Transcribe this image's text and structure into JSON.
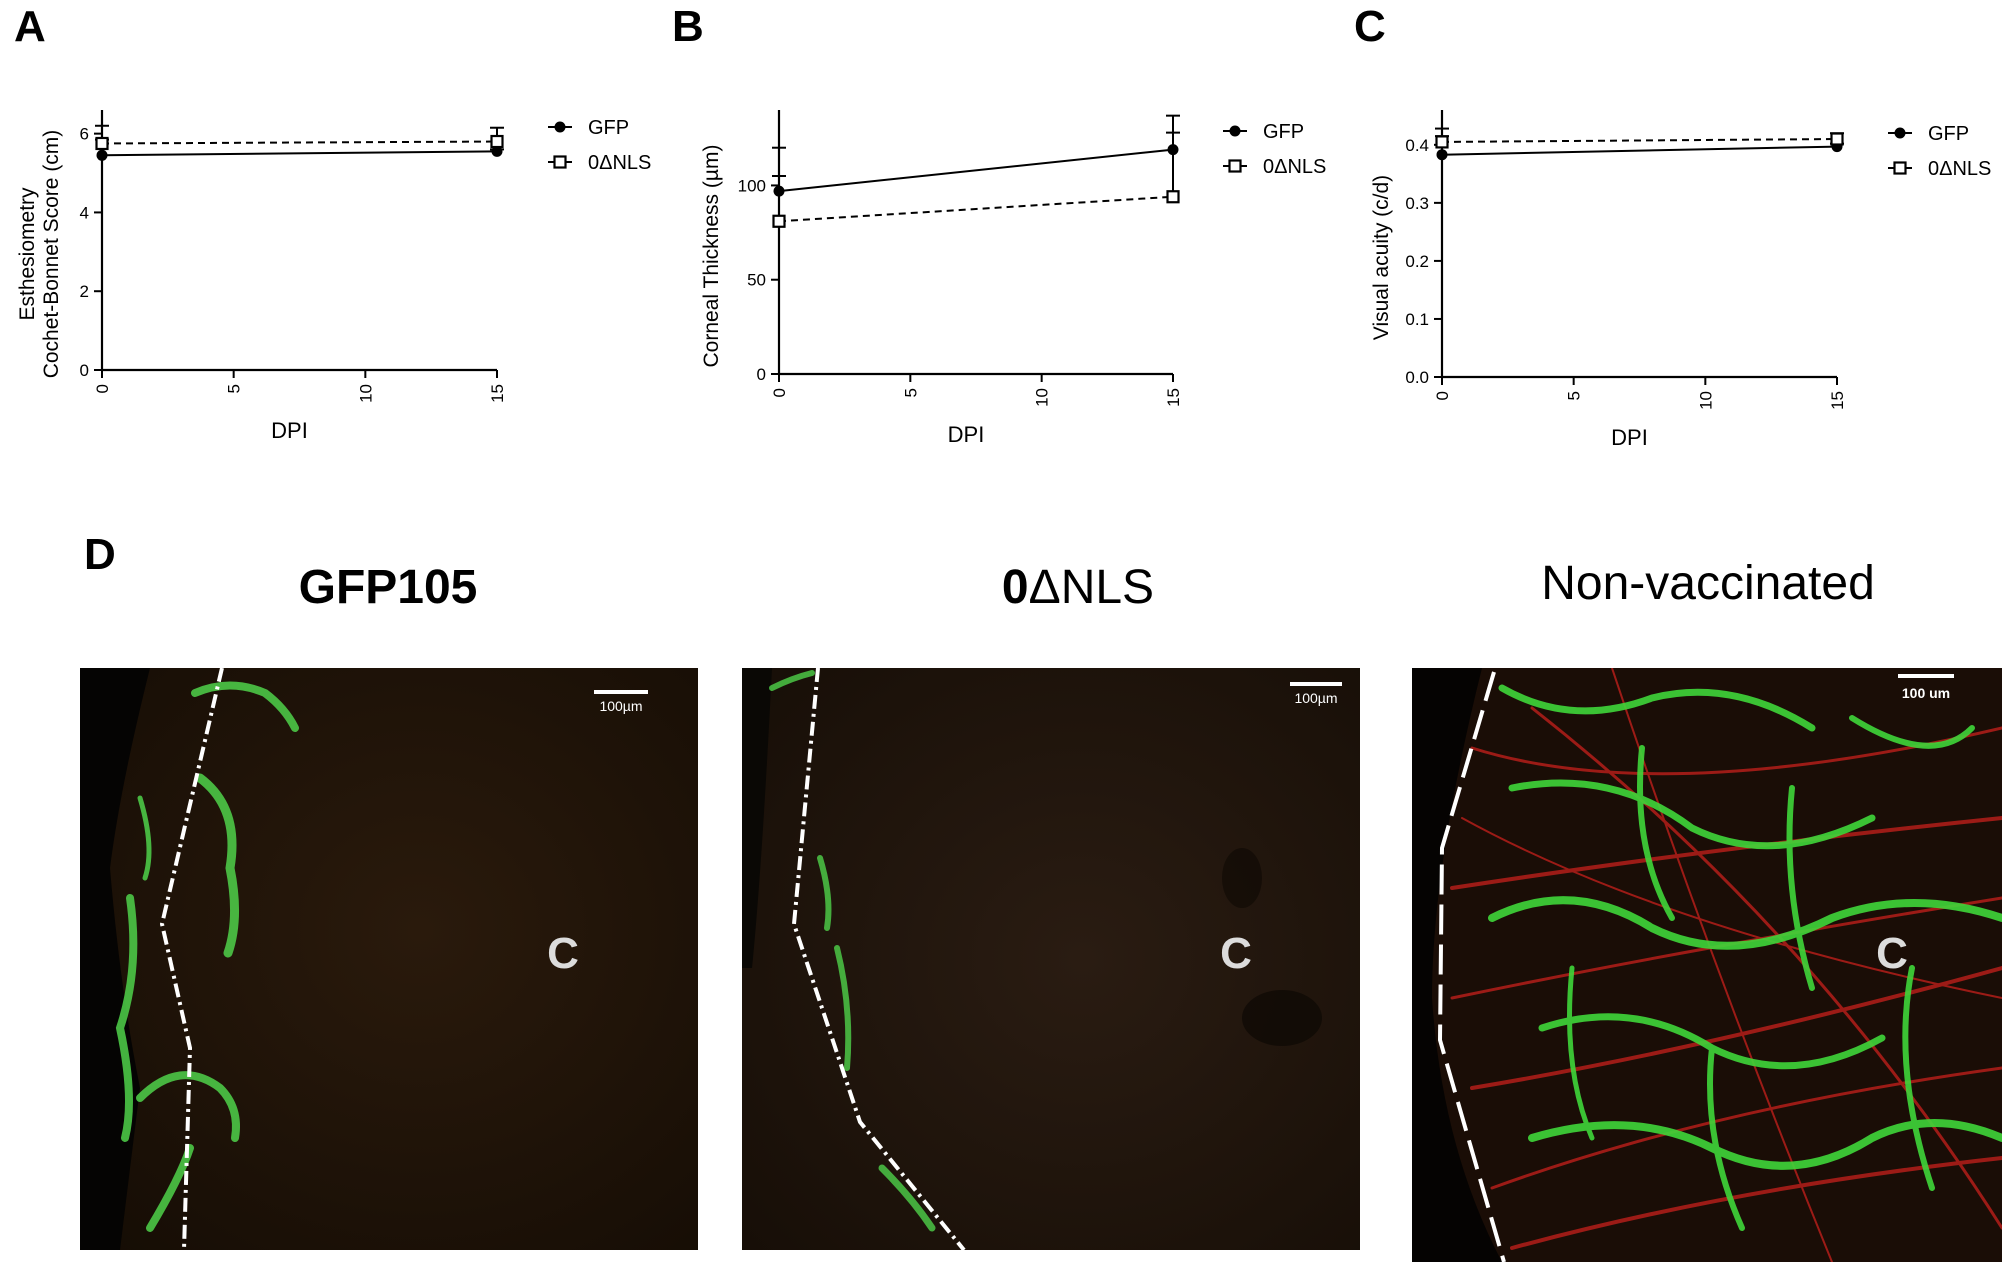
{
  "panels": [
    {
      "letter": "A",
      "chart_data": {
        "type": "line",
        "xlabel": "DPI",
        "ylabel_lines": [
          "Esthesiometry",
          "Cochet-Bonnet Score (cm)"
        ],
        "xlim": [
          0,
          15
        ],
        "ylim": [
          0,
          6.6
        ],
        "xticks": [
          0,
          5,
          10,
          15
        ],
        "yticks": [
          0,
          2,
          4,
          6
        ],
        "ytick_labels": [
          "0",
          "2",
          "4",
          "6"
        ],
        "legend_position": "right",
        "series": [
          {
            "name": "GFP",
            "marker": "filled-circle",
            "line": "solid",
            "x": [
              0,
              15
            ],
            "y": [
              5.45,
              5.55
            ],
            "err": [
              0.75,
              0.05
            ]
          },
          {
            "name": "0ΔNLS",
            "marker": "open-square",
            "line": "dashed",
            "x": [
              0,
              15
            ],
            "y": [
              5.75,
              5.8
            ],
            "err": [
              0.1,
              0.35
            ]
          }
        ]
      }
    },
    {
      "letter": "B",
      "chart_data": {
        "type": "line",
        "xlabel": "DPI",
        "ylabel_lines": [
          "Corneal Thickness (µm)"
        ],
        "xlim": [
          0,
          15
        ],
        "ylim": [
          0,
          140
        ],
        "xticks": [
          0,
          5,
          10,
          15
        ],
        "yticks": [
          0,
          50,
          100
        ],
        "ytick_labels": [
          "0",
          "50",
          "100"
        ],
        "legend_position": "right",
        "series": [
          {
            "name": "GFP",
            "marker": "filled-circle",
            "line": "solid",
            "x": [
              0,
              15
            ],
            "y": [
              97,
              119
            ],
            "err": [
              8,
              18
            ]
          },
          {
            "name": "0ΔNLS",
            "marker": "open-square",
            "line": "dashed",
            "x": [
              0,
              15
            ],
            "y": [
              81,
              94
            ],
            "err": [
              39,
              34
            ]
          }
        ]
      }
    },
    {
      "letter": "C",
      "chart_data": {
        "type": "line",
        "xlabel": "DPI",
        "ylabel_lines": [
          "Visual acuity (c/d)"
        ],
        "xlim": [
          0,
          15
        ],
        "ylim": [
          0,
          0.46
        ],
        "xticks": [
          0,
          5,
          10,
          15
        ],
        "yticks": [
          0,
          0.1,
          0.2,
          0.3,
          0.4
        ],
        "ytick_labels": [
          "0.0",
          "0.1",
          "0.2",
          "0.3",
          "0.4"
        ],
        "legend_position": "right",
        "series": [
          {
            "name": "GFP",
            "marker": "filled-circle",
            "line": "solid",
            "x": [
              0,
              15
            ],
            "y": [
              0.383,
              0.397
            ],
            "err": [
              0.045,
              0.005
            ]
          },
          {
            "name": "0ΔNLS",
            "marker": "open-square",
            "line": "dashed",
            "x": [
              0,
              15
            ],
            "y": [
              0.405,
              0.41
            ],
            "err": [
              0.01,
              0.01
            ]
          }
        ]
      }
    }
  ],
  "figure_d": {
    "letter": "D",
    "images": [
      {
        "title_bold": "GFP105",
        "title_rest": "",
        "scale_label": "100µm",
        "center_label": "C"
      },
      {
        "title_bold": "0",
        "title_rest": "ΔNLS",
        "scale_label": "100µm",
        "center_label": "C"
      },
      {
        "title_bold": "",
        "title_rest": "Non-vaccinated",
        "scale_label": "100 um",
        "center_label": "C"
      }
    ]
  }
}
